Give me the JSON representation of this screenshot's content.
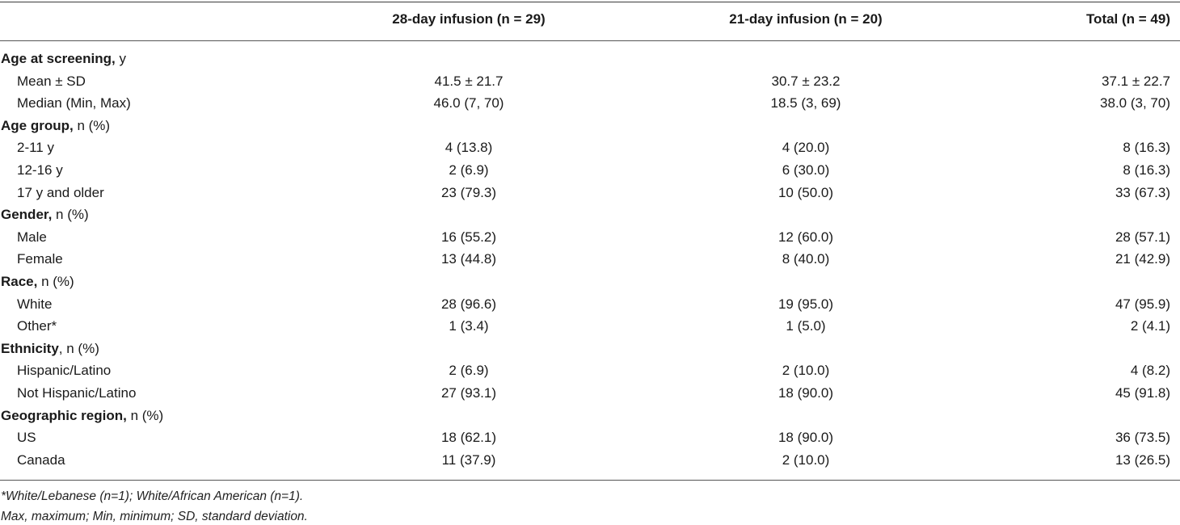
{
  "table": {
    "headers": [
      "",
      "28-day infusion (n = 29)",
      "21-day infusion (n = 20)",
      "Total (n = 49)"
    ],
    "rows": [
      {
        "type": "section",
        "bold": "Age at screening,",
        "rest": " y"
      },
      {
        "type": "data",
        "label": "Mean ± SD",
        "values": [
          "41.5 ± 21.7",
          "30.7 ± 23.2",
          "37.1 ± 22.7"
        ]
      },
      {
        "type": "data",
        "label": "Median (Min, Max)",
        "values": [
          "46.0 (7, 70)",
          "18.5 (3, 69)",
          "38.0 (3, 70)"
        ]
      },
      {
        "type": "section",
        "bold": "Age group,",
        "rest": " n (%)"
      },
      {
        "type": "data",
        "label": "2-11 y",
        "values": [
          "4 (13.8)",
          "4 (20.0)",
          "8 (16.3)"
        ]
      },
      {
        "type": "data",
        "label": "12-16 y",
        "values": [
          "2 (6.9)",
          "6 (30.0)",
          "8 (16.3)"
        ]
      },
      {
        "type": "data",
        "label": "17 y and older",
        "values": [
          "23 (79.3)",
          "10 (50.0)",
          "33 (67.3)"
        ]
      },
      {
        "type": "section",
        "bold": "Gender,",
        "rest": " n (%)"
      },
      {
        "type": "data",
        "label": "Male",
        "values": [
          "16 (55.2)",
          "12 (60.0)",
          "28 (57.1)"
        ]
      },
      {
        "type": "data",
        "label": "Female",
        "values": [
          "13 (44.8)",
          "8 (40.0)",
          "21 (42.9)"
        ]
      },
      {
        "type": "section",
        "bold": "Race,",
        "rest": " n (%)"
      },
      {
        "type": "data",
        "label": "White",
        "values": [
          "28 (96.6)",
          "19 (95.0)",
          "47 (95.9)"
        ]
      },
      {
        "type": "data",
        "label": "Other*",
        "values": [
          "1 (3.4)",
          "1 (5.0)",
          "2 (4.1)"
        ]
      },
      {
        "type": "section",
        "bold": "Ethnicity",
        "rest": ", n (%)"
      },
      {
        "type": "data",
        "label": "Hispanic/Latino",
        "values": [
          "2 (6.9)",
          "2 (10.0)",
          "4 (8.2)"
        ]
      },
      {
        "type": "data",
        "label": "Not Hispanic/Latino",
        "values": [
          "27 (93.1)",
          "18 (90.0)",
          "45 (91.8)"
        ]
      },
      {
        "type": "section",
        "bold": "Geographic region,",
        "rest": " n (%)"
      },
      {
        "type": "data",
        "label": "US",
        "values": [
          "18 (62.1)",
          "18 (90.0)",
          "36 (73.5)"
        ]
      },
      {
        "type": "data",
        "label": "Canada",
        "values": [
          "11 (37.9)",
          "2 (10.0)",
          "13 (26.5)"
        ]
      }
    ]
  },
  "footnotes": [
    "*White/Lebanese (n=1); White/African American (n=1).",
    "Max, maximum; Min, minimum; SD, standard deviation."
  ]
}
